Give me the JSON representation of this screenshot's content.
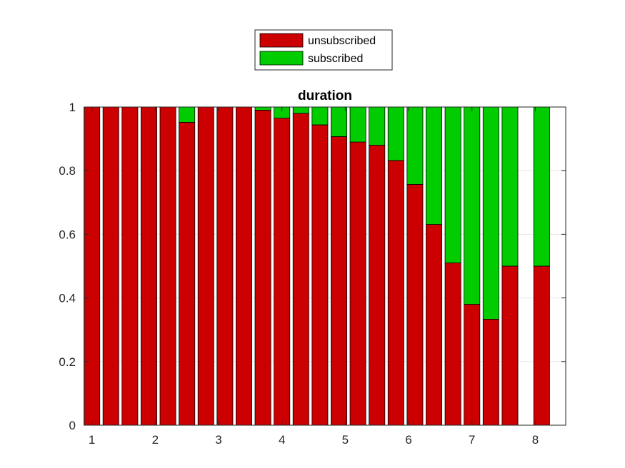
{
  "chart_data": {
    "type": "bar",
    "stacked": true,
    "title": "duration",
    "xlabel": "",
    "ylabel": "",
    "xlim": [
      0.88,
      8.48
    ],
    "ylim": [
      0,
      1
    ],
    "bar_width_units": 0.25,
    "grid": true,
    "legend_position": "top-center",
    "colors": {
      "unsubscribed": "#cc0000",
      "subscribed": "#00cc00",
      "edge": "#000000",
      "grid": "#e6e6e6",
      "axis": "#262626"
    },
    "x_ticks": [
      1,
      2,
      3,
      4,
      5,
      6,
      7,
      8
    ],
    "y_ticks": [
      0,
      0.2,
      0.4,
      0.6,
      0.8,
      1
    ],
    "y_tick_labels": [
      "0",
      "0.2",
      "0.4",
      "0.6",
      "0.8",
      "1"
    ],
    "x": [
      1.0,
      1.3,
      1.6,
      1.9,
      2.2,
      2.5,
      2.8,
      3.1,
      3.4,
      3.7,
      4.0,
      4.3,
      4.6,
      4.9,
      5.2,
      5.5,
      5.8,
      6.1,
      6.4,
      6.7,
      7.0,
      7.3,
      7.6,
      8.1
    ],
    "series": [
      {
        "name": "unsubscribed",
        "values": [
          1,
          1,
          1,
          1,
          1,
          0.952,
          1,
          1,
          1,
          0.99,
          0.965,
          0.98,
          0.944,
          0.907,
          0.89,
          0.88,
          0.832,
          0.757,
          0.631,
          0.51,
          0.38,
          0.333,
          0.5,
          0.5
        ]
      },
      {
        "name": "subscribed",
        "values": [
          0,
          0,
          0,
          0,
          0,
          0.048,
          0,
          0,
          0,
          0.01,
          0.035,
          0.02,
          0.056,
          0.093,
          0.11,
          0.12,
          0.168,
          0.243,
          0.369,
          0.49,
          0.62,
          0.667,
          0.5,
          0.5
        ]
      }
    ]
  }
}
